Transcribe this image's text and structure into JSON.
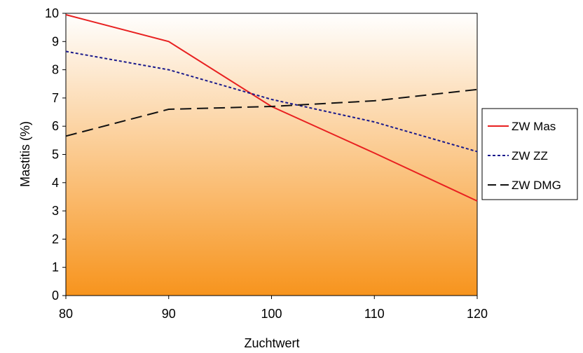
{
  "chart_data": {
    "type": "line",
    "xlabel": "Zuchtwert",
    "ylabel": "Mastitis (%)",
    "xlim": [
      80,
      120
    ],
    "ylim": [
      0,
      10
    ],
    "x": [
      80,
      90,
      100,
      110,
      120
    ],
    "x_ticks": [
      "80",
      "90",
      "100",
      "110",
      "120"
    ],
    "y_ticks": [
      "0",
      "1",
      "2",
      "3",
      "4",
      "5",
      "6",
      "7",
      "8",
      "9",
      "10"
    ],
    "grid": false,
    "legend_position": "right",
    "background_gradient": {
      "top": "#ffffff",
      "bottom": "#f7941d"
    },
    "series": [
      {
        "name": "ZW Mas",
        "values": [
          9.95,
          9.0,
          6.7,
          5.05,
          3.35
        ],
        "color": "#e82020",
        "style": "solid"
      },
      {
        "name": "ZW ZZ",
        "values": [
          8.65,
          8.0,
          6.95,
          6.15,
          5.1
        ],
        "color": "#1a1a8c",
        "style": "dotted"
      },
      {
        "name": "ZW DMG",
        "values": [
          5.65,
          6.6,
          6.7,
          6.9,
          7.3
        ],
        "color": "#111111",
        "style": "dashed"
      }
    ]
  }
}
